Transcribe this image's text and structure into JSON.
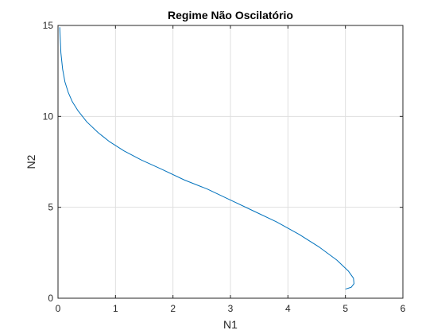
{
  "chart_data": {
    "type": "line",
    "title": "Regime Não Oscilatório",
    "xlabel": "N1",
    "ylabel": "N2",
    "xlim": [
      0,
      6
    ],
    "ylim": [
      0,
      15
    ],
    "xticks": [
      "0",
      "1",
      "2",
      "3",
      "4",
      "5",
      "6"
    ],
    "yticks": [
      "0",
      "5",
      "10",
      "15"
    ],
    "grid": true,
    "legend": "none",
    "series": [
      {
        "color": "#0072BD",
        "x": [
          0.03,
          0.05,
          0.08,
          0.12,
          0.18,
          0.25,
          0.35,
          0.5,
          0.7,
          0.9,
          1.15,
          1.45,
          1.8,
          2.2,
          2.6,
          3.0,
          3.4,
          3.8,
          4.2,
          4.55,
          4.85,
          5.05,
          5.14,
          5.15,
          5.1,
          5.0
        ],
        "y": [
          14.9,
          13.5,
          12.6,
          11.9,
          11.3,
          10.8,
          10.3,
          9.7,
          9.1,
          8.6,
          8.1,
          7.6,
          7.1,
          6.5,
          6.0,
          5.4,
          4.8,
          4.2,
          3.5,
          2.8,
          2.1,
          1.5,
          1.1,
          0.8,
          0.6,
          0.5
        ]
      }
    ]
  }
}
